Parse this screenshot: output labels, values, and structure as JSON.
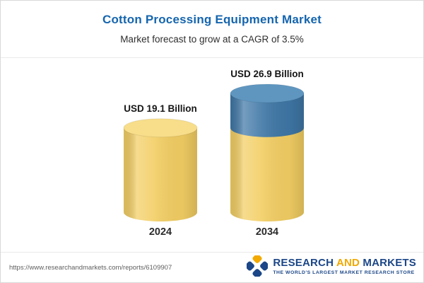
{
  "header": {
    "title": "Cotton Processing Equipment Market",
    "subtitle": "Market forecast to grow at a CAGR of 3.5%"
  },
  "chart_data": {
    "type": "bar",
    "style": "3d-cylinder",
    "title": "Cotton Processing Equipment Market",
    "subtitle": "Market forecast to grow at a CAGR of 3.5%",
    "cagr": "3.5%",
    "categories": [
      "2024",
      "2034"
    ],
    "values": [
      19.1,
      26.9
    ],
    "bar_labels": [
      "USD 19.1 Billion",
      "USD 26.9 Billion"
    ],
    "series": [
      {
        "name": "market size (yellow segment)",
        "values": [
          19.1,
          19.1
        ],
        "color": "#F3CE63",
        "top_color": "#F8DE8A"
      },
      {
        "name": "forecast growth (blue segment)",
        "values": [
          0,
          7.8
        ],
        "color": "#3F77A6",
        "top_color": "#5E96C0"
      }
    ],
    "ylim": [
      0,
      26.9
    ],
    "legend": false,
    "gridlines": false
  },
  "footer": {
    "url": "https://www.researchandmarkets.com/reports/6109907",
    "logo": {
      "word1": "RESEARCH",
      "word2": "AND",
      "word3": "MARKETS",
      "tagline": "THE WORLD'S LARGEST MARKET RESEARCH STORE",
      "navy": "#1B4687",
      "gold": "#F2A900"
    }
  },
  "colors": {
    "title_blue": "#1565AE",
    "bar_yellow": "#F3CE63",
    "bar_blue": "#3F77A6"
  }
}
